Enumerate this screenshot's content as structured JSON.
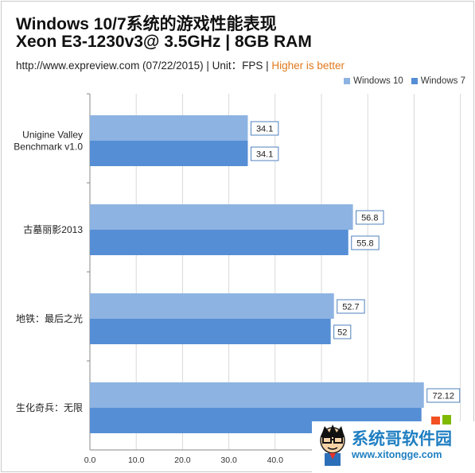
{
  "header": {
    "title_line1": "Windows 10/7系统的游戏性能表现",
    "title_line2": "Xeon E3-1230v3@ 3.5GHz | 8GB RAM",
    "subtitle_main": "http://www.expreview.com (07/22/2015) | Unit：FPS | ",
    "subtitle_highlight": "Higher is better"
  },
  "colors": {
    "win10": "#8db3e2",
    "win7": "#558ed5",
    "highlight": "#e07a1f",
    "gridline": "#d9d9d9"
  },
  "chart_data": {
    "type": "bar",
    "orientation": "horizontal",
    "categories": [
      "Unigine Valley Benchmark v1.0",
      "古墓丽影2013",
      "地铁：最后之光",
      "生化奇兵：无限"
    ],
    "series": [
      {
        "name": "Windows 10",
        "values": [
          34.1,
          56.8,
          52.7,
          72.12
        ],
        "labels": [
          "34.1",
          "56.8",
          "52.7",
          "72.12"
        ]
      },
      {
        "name": "Windows 7",
        "values": [
          34.1,
          55.8,
          52,
          71.6
        ],
        "labels": [
          "34.1",
          "55.8",
          "52",
          ""
        ]
      }
    ],
    "xlim": [
      0,
      80
    ],
    "xticks": [
      "0.0",
      "10.0",
      "20.0",
      "30.0",
      "40.0"
    ],
    "grid": true,
    "legend_position": "top-right"
  },
  "watermark": {
    "text": "系统哥软件园",
    "url": "www.xitongge.com"
  }
}
